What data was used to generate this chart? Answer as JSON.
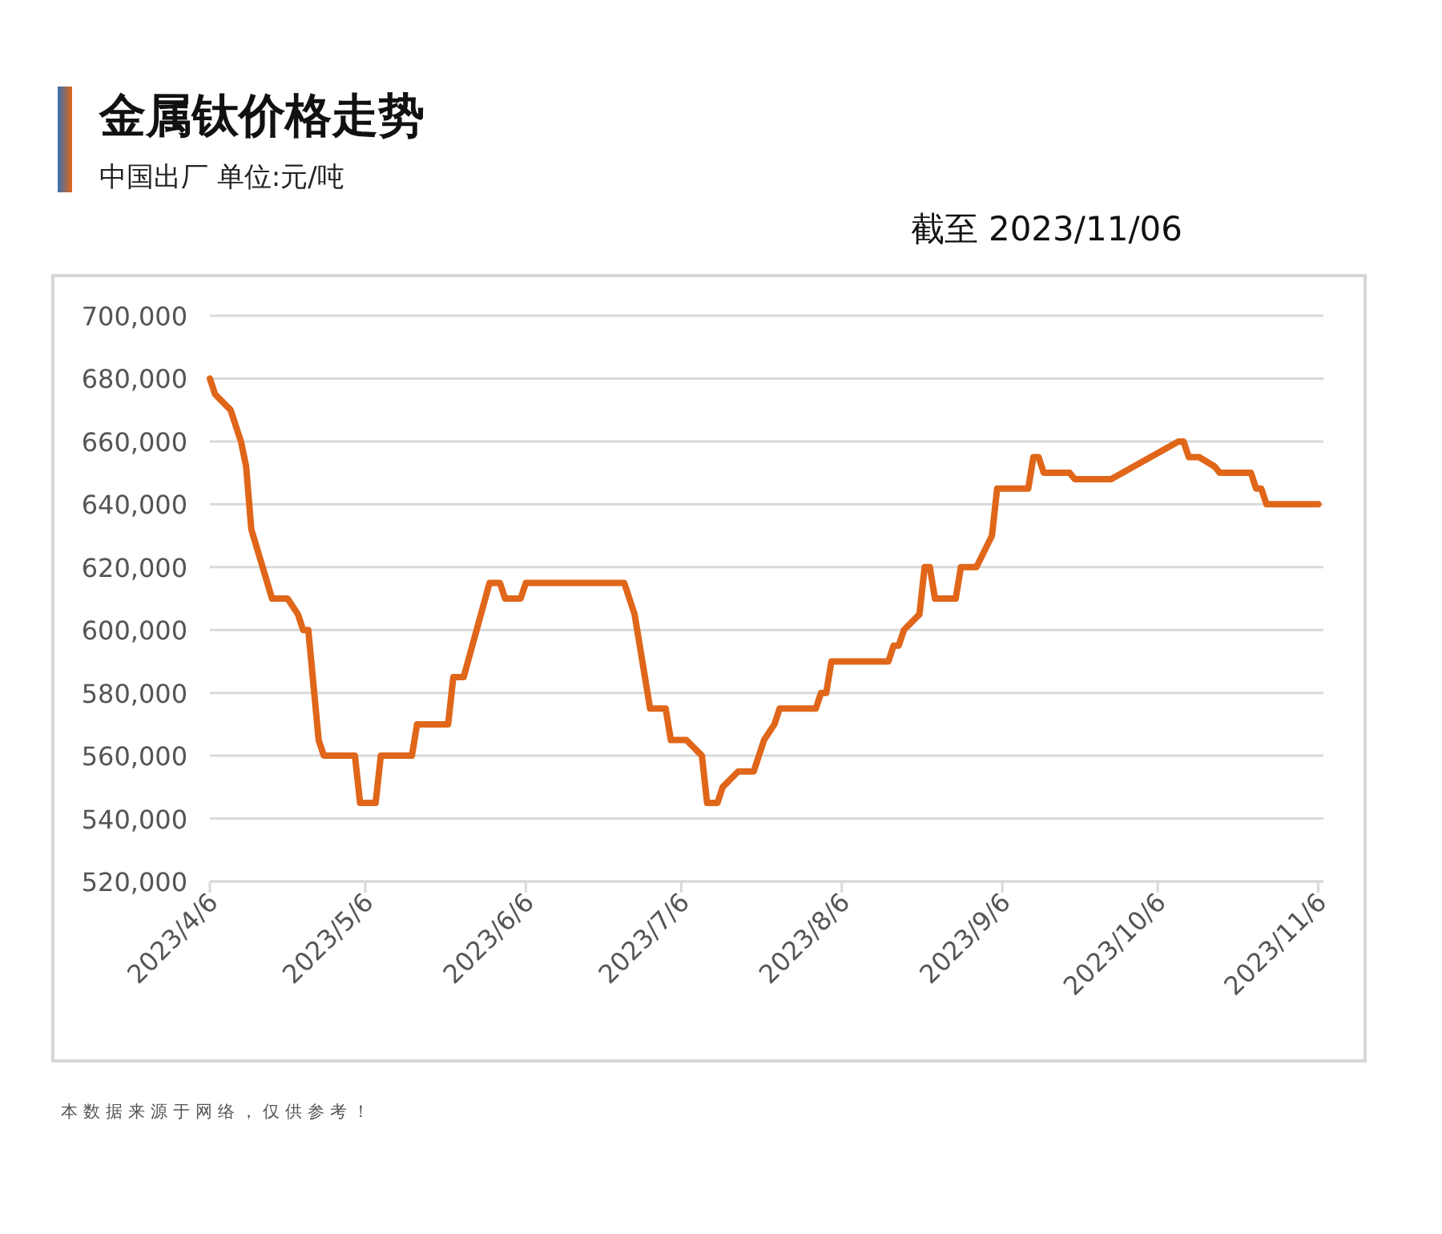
{
  "chart_data": {
    "type": "line",
    "title": "金属钛价格走势",
    "subtitle": "中国出厂 单位:元/吨",
    "annotations": [
      "截至 2023/11/06",
      "本数据来源于网络，仅供参考！"
    ],
    "x": [
      "2023-04-06",
      "2023-04-07",
      "2023-04-10",
      "2023-04-12",
      "2023-04-13",
      "2023-04-14",
      "2023-04-18",
      "2023-04-21",
      "2023-04-23",
      "2023-04-24",
      "2023-04-25",
      "2023-04-27",
      "2023-04-28",
      "2023-05-04",
      "2023-05-05",
      "2023-05-08",
      "2023-05-09",
      "2023-05-15",
      "2023-05-16",
      "2023-05-22",
      "2023-05-23",
      "2023-05-25",
      "2023-05-30",
      "2023-06-01",
      "2023-06-02",
      "2023-06-05",
      "2023-06-06",
      "2023-06-25",
      "2023-06-27",
      "2023-06-30",
      "2023-07-03",
      "2023-07-04",
      "2023-07-07",
      "2023-07-10",
      "2023-07-11",
      "2023-07-13",
      "2023-07-14",
      "2023-07-17",
      "2023-07-20",
      "2023-07-22",
      "2023-07-24",
      "2023-07-25",
      "2023-08-01",
      "2023-08-02",
      "2023-08-03",
      "2023-08-04",
      "2023-08-15",
      "2023-08-16",
      "2023-08-17",
      "2023-08-18",
      "2023-08-21",
      "2023-08-22",
      "2023-08-23",
      "2023-08-24",
      "2023-08-28",
      "2023-08-29",
      "2023-09-01",
      "2023-09-04",
      "2023-09-05",
      "2023-09-11",
      "2023-09-12",
      "2023-09-13",
      "2023-09-14",
      "2023-09-19",
      "2023-09-20",
      "2023-09-27",
      "2023-10-10",
      "2023-10-11",
      "2023-10-12",
      "2023-10-14",
      "2023-10-17",
      "2023-10-18",
      "2023-10-24",
      "2023-10-25",
      "2023-10-26",
      "2023-10-27",
      "2023-11-06"
    ],
    "series": [
      {
        "color": "#e0661a",
        "values": [
          680000,
          675000,
          670000,
          660000,
          652000,
          632000,
          610000,
          610000,
          605000,
          600000,
          600000,
          565000,
          560000,
          560000,
          545000,
          545000,
          560000,
          560000,
          570000,
          570000,
          585000,
          585000,
          615000,
          615000,
          610000,
          610000,
          615000,
          615000,
          605000,
          575000,
          575000,
          565000,
          565000,
          560000,
          545000,
          545000,
          550000,
          555000,
          555000,
          565000,
          570000,
          575000,
          575000,
          580000,
          580000,
          590000,
          590000,
          595000,
          595000,
          600000,
          605000,
          620000,
          620000,
          610000,
          610000,
          620000,
          620000,
          630000,
          645000,
          645000,
          655000,
          655000,
          650000,
          650000,
          648000,
          648000,
          660000,
          660000,
          655000,
          655000,
          652000,
          650000,
          650000,
          645000,
          645000,
          640000,
          640000
        ]
      }
    ],
    "xlim": [
      "2023-04-06",
      "2023-11-07"
    ],
    "xticks": [
      {
        "value": "2023-04-06",
        "label": "2023/4/6"
      },
      {
        "value": "2023-05-06",
        "label": "2023/5/6"
      },
      {
        "value": "2023-06-06",
        "label": "2023/6/6"
      },
      {
        "value": "2023-07-06",
        "label": "2023/7/6"
      },
      {
        "value": "2023-08-06",
        "label": "2023/8/6"
      },
      {
        "value": "2023-09-06",
        "label": "2023/9/6"
      },
      {
        "value": "2023-10-06",
        "label": "2023/10/6"
      },
      {
        "value": "2023-11-06",
        "label": "2023/11/6"
      }
    ],
    "ylim": [
      520000,
      700000
    ],
    "yticks": [
      {
        "value": 520000,
        "label": "520,000"
      },
      {
        "value": 540000,
        "label": "540,000"
      },
      {
        "value": 560000,
        "label": "560,000"
      },
      {
        "value": 580000,
        "label": "580,000"
      },
      {
        "value": 600000,
        "label": "600,000"
      },
      {
        "value": 620000,
        "label": "620,000"
      },
      {
        "value": 640000,
        "label": "640,000"
      },
      {
        "value": 660000,
        "label": "660,000"
      },
      {
        "value": 680000,
        "label": "680,000"
      },
      {
        "value": 700000,
        "label": "700,000"
      }
    ],
    "grid": "y",
    "line_style": "solid",
    "marker": "none"
  }
}
